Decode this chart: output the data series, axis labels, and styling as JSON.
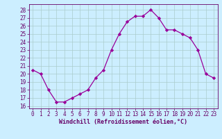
{
  "x": [
    0,
    1,
    2,
    3,
    4,
    5,
    6,
    7,
    8,
    9,
    10,
    11,
    12,
    13,
    14,
    15,
    16,
    17,
    18,
    19,
    20,
    21,
    22,
    23
  ],
  "y": [
    20.5,
    20.0,
    18.0,
    16.5,
    16.5,
    17.0,
    17.5,
    18.0,
    19.5,
    20.5,
    23.0,
    25.0,
    26.5,
    27.2,
    27.2,
    28.0,
    27.0,
    25.5,
    25.5,
    25.0,
    24.5,
    23.0,
    20.0,
    19.5
  ],
  "line_color": "#990099",
  "marker": "D",
  "marker_size": 2.2,
  "bg_color": "#cceeff",
  "grid_color": "#aacccc",
  "xlabel": "Windchill (Refroidissement éolien,°C)",
  "yticks": [
    16,
    17,
    18,
    19,
    20,
    21,
    22,
    23,
    24,
    25,
    26,
    27,
    28
  ],
  "xticks": [
    0,
    1,
    2,
    3,
    4,
    5,
    6,
    7,
    8,
    9,
    10,
    11,
    12,
    13,
    14,
    15,
    16,
    17,
    18,
    19,
    20,
    21,
    22,
    23
  ],
  "ylim": [
    15.7,
    28.7
  ],
  "xlim": [
    -0.5,
    23.5
  ],
  "tick_color": "#660066",
  "spine_color": "#660066",
  "xlabel_color": "#660066",
  "xlabel_fontsize": 6.0,
  "tick_fontsize": 5.5
}
